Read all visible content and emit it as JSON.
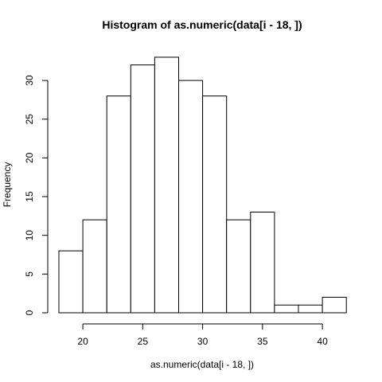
{
  "chart_data": {
    "type": "bar",
    "title": "Histogram of as.numeric(data[i - 18, ])",
    "xlabel": "as.numeric(data[i - 18, ])",
    "ylabel": "Frequency",
    "bins": [
      {
        "from": 18,
        "to": 20,
        "count": 8
      },
      {
        "from": 20,
        "to": 22,
        "count": 12
      },
      {
        "from": 22,
        "to": 24,
        "count": 28
      },
      {
        "from": 24,
        "to": 26,
        "count": 32
      },
      {
        "from": 26,
        "to": 28,
        "count": 33
      },
      {
        "from": 28,
        "to": 30,
        "count": 30
      },
      {
        "from": 30,
        "to": 32,
        "count": 28
      },
      {
        "from": 32,
        "to": 34,
        "count": 12
      },
      {
        "from": 34,
        "to": 36,
        "count": 13
      },
      {
        "from": 36,
        "to": 38,
        "count": 1
      },
      {
        "from": 38,
        "to": 40,
        "count": 1
      },
      {
        "from": 40,
        "to": 42,
        "count": 2
      }
    ],
    "xlim": [
      18,
      42
    ],
    "ylim": [
      0,
      33
    ],
    "x_ticks": [
      20,
      25,
      30,
      35,
      40
    ],
    "y_ticks": [
      0,
      5,
      10,
      15,
      20,
      25,
      30
    ],
    "grid": false
  }
}
